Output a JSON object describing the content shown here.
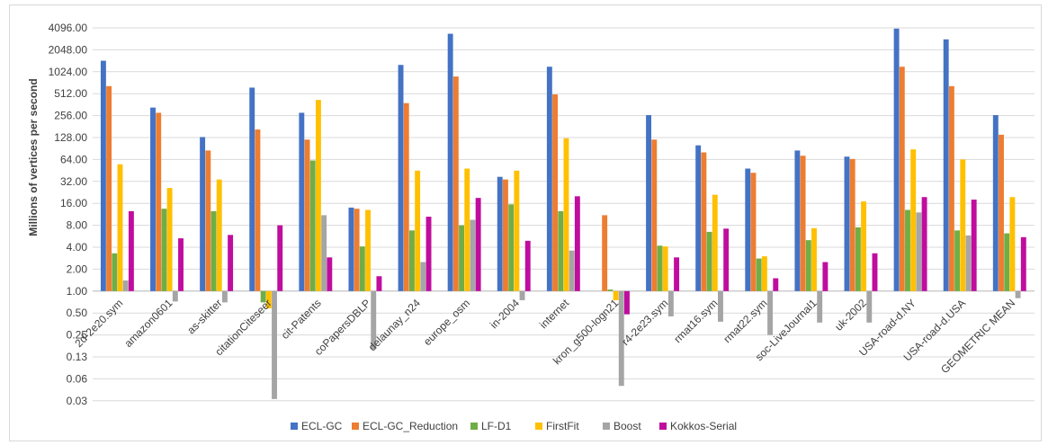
{
  "chart_data": {
    "type": "bar",
    "title": "",
    "xlabel": "",
    "ylabel": "Millions of vertices per second",
    "yscale": "log2",
    "ylim": [
      0.03,
      4096
    ],
    "yticks": [
      4096,
      2048,
      1024,
      512,
      256,
      128,
      64,
      32,
      16,
      8,
      4,
      2,
      1,
      0.5,
      0.25,
      0.13,
      0.06,
      0.03
    ],
    "ytick_labels": [
      "4096.00",
      "2048.00",
      "1024.00",
      "512.00",
      "256.00",
      "128.00",
      "64.00",
      "32.00",
      "16.00",
      "8.00",
      "4.00",
      "2.00",
      "1.00",
      "0.50",
      "0.25",
      "0.13",
      "0.06",
      "0.03"
    ],
    "baseline": 1,
    "grid": true,
    "legend_position": "bottom",
    "categories": [
      "2d-2e20.sym",
      "amazon0601",
      "as-skitter",
      "citationCiteseer",
      "cit-Patents",
      "coPapersDBLP",
      "delaunay_n24",
      "europe_osm",
      "in-2004",
      "internet",
      "kron_g500-logn21",
      "r4-2e23.sym",
      "rmat16.sym",
      "rmat22.sym",
      "soc-LiveJournal1",
      "uk-2002",
      "USA-road-d.NY",
      "USA-road-d.USA",
      "GEOMETRIC MEAN"
    ],
    "series": [
      {
        "name": "ECL-GC",
        "color": "#4472C4",
        "values": [
          1450,
          330,
          130,
          620,
          280,
          14,
          1270,
          3400,
          37,
          1200,
          null,
          260,
          100,
          48,
          85,
          70,
          4000,
          2850,
          260
        ]
      },
      {
        "name": "ECL-GC_Reduction",
        "color": "#ED7D31",
        "values": [
          650,
          280,
          85,
          165,
          120,
          13.5,
          380,
          880,
          34,
          500,
          11,
          120,
          80,
          42,
          72,
          65,
          1200,
          650,
          140
        ]
      },
      {
        "name": "LF-D1",
        "color": "#70AD47",
        "values": [
          3.3,
          13.5,
          12.5,
          0.7,
          62,
          4.1,
          6.8,
          8,
          15.5,
          12.5,
          1.05,
          4.2,
          6.5,
          2.8,
          5,
          7.5,
          13,
          6.8,
          6.2
        ]
      },
      {
        "name": "FirstFit",
        "color": "#FFC000",
        "values": [
          55,
          26,
          34,
          0.58,
          420,
          13,
          45,
          48,
          45,
          125,
          0.75,
          4.1,
          21,
          3,
          7.3,
          17,
          88,
          64,
          19.5
        ]
      },
      {
        "name": "Boost",
        "color": "#A5A5A5",
        "values": [
          1.4,
          0.72,
          0.7,
          0.033,
          11,
          0.16,
          2.5,
          9.5,
          0.75,
          3.6,
          0.05,
          0.45,
          0.38,
          0.25,
          0.37,
          0.37,
          12,
          5.8,
          0.8
        ]
      },
      {
        "name": "Kokkos-Serial",
        "color": "#C00D9E",
        "values": [
          12.5,
          5.3,
          5.9,
          8,
          2.9,
          1.6,
          10.5,
          19,
          4.9,
          20,
          0.48,
          2.9,
          7.2,
          1.5,
          2.5,
          3.3,
          19.5,
          18,
          5.5
        ]
      }
    ]
  }
}
